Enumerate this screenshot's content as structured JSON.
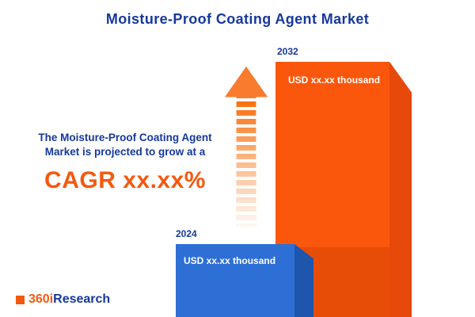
{
  "title": "Moisture-Proof Coating Agent Market",
  "left_text": {
    "line1": "The Moisture-Proof Coating Agent",
    "line2": "Market is projected to grow at a",
    "cagr": "CAGR xx.xx%"
  },
  "bars": [
    {
      "year": "2024",
      "value": "USD xx.xx thousand"
    },
    {
      "year": "2032",
      "value": "USD xx.xx thousand"
    }
  ],
  "logo": {
    "prefix": "360i",
    "suffix": "Research"
  },
  "colors": {
    "navy": "#16389b",
    "orange": "#f4590f",
    "bar_blue": "#2e6fd6",
    "bar_orange": "#fb570c"
  },
  "chart_data": {
    "type": "bar",
    "categories": [
      "2024",
      "2032"
    ],
    "values": [
      null,
      null
    ],
    "value_labels": [
      "USD xx.xx thousand",
      "USD xx.xx thousand"
    ],
    "title": "Moisture-Proof Coating Agent Market",
    "annotation": "The Moisture-Proof Coating Agent Market is projected to grow at a CAGR xx.xx%",
    "xlabel": "",
    "ylabel": "",
    "legend": "none",
    "grid": false
  }
}
